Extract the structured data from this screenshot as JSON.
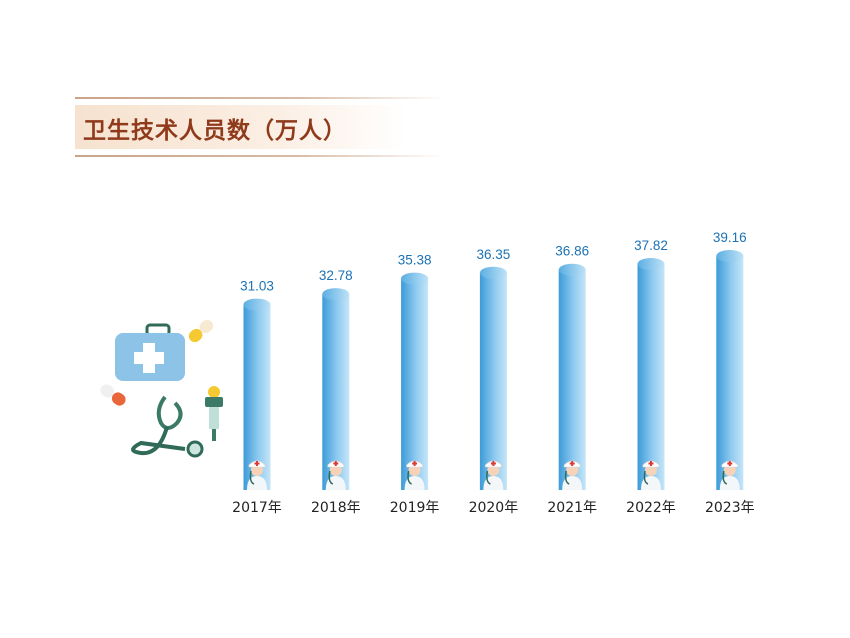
{
  "title": "卫生技术人员数（万人）",
  "colors": {
    "bar_dark": "#3c9bd8",
    "bar_light": "#a8d6f3",
    "value_label": "#1c72b4",
    "title_text": "#8f3a1b"
  },
  "chart_data": {
    "type": "bar",
    "title": "卫生技术人员数（万人）",
    "categories": [
      "2017年",
      "2018年",
      "2019年",
      "2020年",
      "2021年",
      "2022年",
      "2023年"
    ],
    "values": [
      31.03,
      32.78,
      35.38,
      36.35,
      36.86,
      37.82,
      39.16
    ],
    "xlabel": "",
    "ylabel": "",
    "ylim": [
      0,
      42
    ],
    "grid": false,
    "legend": "none"
  },
  "decorations": [
    "first-aid-kit-icon",
    "capsule-icon",
    "stethoscope-icon",
    "dropper-icon",
    "nurse-icon"
  ]
}
